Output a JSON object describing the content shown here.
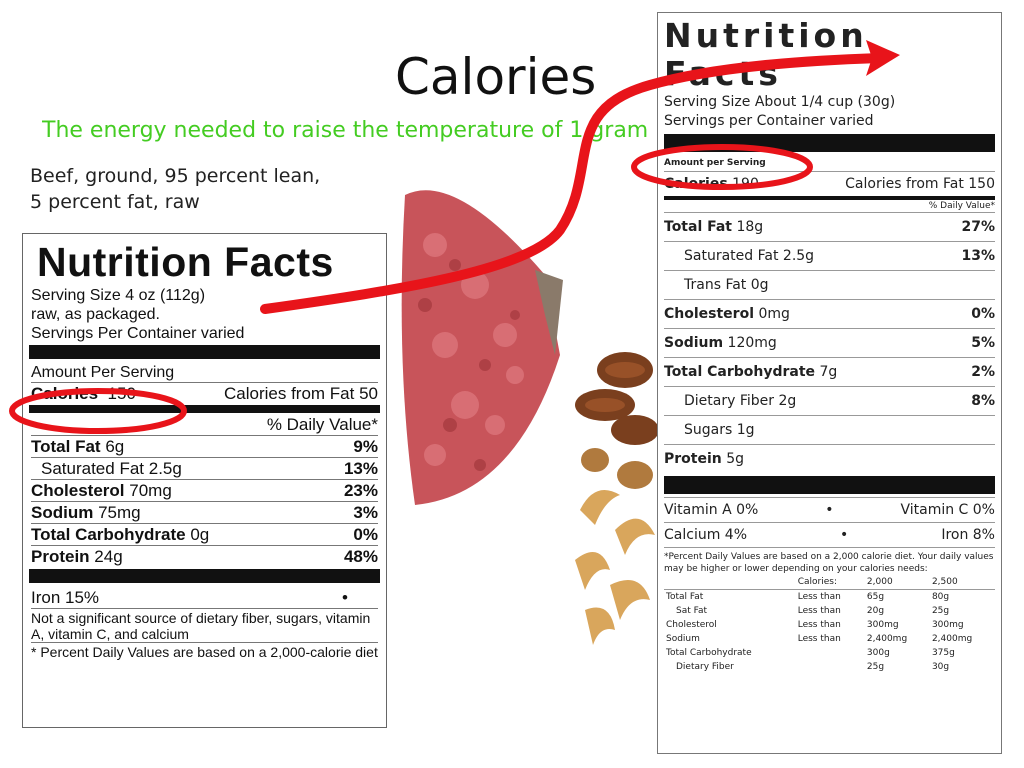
{
  "slide": {
    "title": "Calories",
    "subtitle": "The energy needed to raise the temperature of 1 gram"
  },
  "food_caption": {
    "line1": "Beef, ground, 95 percent lean,",
    "line2": "5 percent fat, raw"
  },
  "colors": {
    "subtitle": "#44cc22",
    "arrow": "#e8141a",
    "beef": "#c8545a",
    "nuts": "#b07a3e"
  },
  "label_left": {
    "title": "Nutrition Facts",
    "serving_size": "Serving Size 4 oz (112g)",
    "serving_note": "raw, as packaged.",
    "servings_per_container": "Servings Per Container varied",
    "amount_per_serving": "Amount Per Serving",
    "calories_label": "Calories",
    "calories_value": "150",
    "calories_from_fat": "Calories from Fat 50",
    "dv_header": "% Daily Value*",
    "rows": [
      {
        "label": "Total Fat",
        "amount": "6g",
        "dv": "9%"
      },
      {
        "label": "Saturated Fat",
        "amount": "2.5g",
        "dv": "13%"
      },
      {
        "label": "Cholesterol",
        "amount": "70mg",
        "dv": "23%"
      },
      {
        "label": "Sodium",
        "amount": "75mg",
        "dv": "3%"
      },
      {
        "label": "Total Carbohydrate",
        "amount": "0g",
        "dv": "0%"
      },
      {
        "label": "Protein",
        "amount": "24g",
        "dv": "48%"
      }
    ],
    "iron": "Iron 15%",
    "bullet": "•",
    "footnote1": "Not a significant source of dietary fiber, sugars, vitamin A, vitamin C, and calcium",
    "footnote2": "* Percent Daily Values are based on a 2,000-calorie diet"
  },
  "label_right": {
    "title": "Nutrition Facts",
    "serving_size": "Serving Size About 1/4 cup (30g)",
    "servings_per_container": "Servings per Container varied",
    "amount_per_serving": "Amount per Serving",
    "calories_label": "Calories",
    "calories_value": "190",
    "calories_from_fat": "Calories from Fat 150",
    "dv_header": "% Daily Value*",
    "rows": [
      {
        "label": "Total Fat",
        "amount": "18g",
        "dv": "27%"
      },
      {
        "label": "Saturated Fat",
        "amount": "2.5g",
        "dv": "13%"
      },
      {
        "label": "Trans Fat",
        "amount": "0g",
        "dv": ""
      },
      {
        "label": "Cholesterol",
        "amount": "0mg",
        "dv": "0%"
      },
      {
        "label": "Sodium",
        "amount": "120mg",
        "dv": "5%"
      },
      {
        "label": "Total Carbohydrate",
        "amount": "7g",
        "dv": "2%"
      },
      {
        "label": "Dietary Fiber",
        "amount": "2g",
        "dv": "8%"
      },
      {
        "label": "Sugars",
        "amount": "1g",
        "dv": ""
      },
      {
        "label": "Protein",
        "amount": "5g",
        "dv": ""
      }
    ],
    "vitamin_a": "Vitamin A 0%",
    "vitamin_c": "Vitamin C 0%",
    "calcium": "Calcium 4%",
    "iron": "Iron 8%",
    "bullet": "•",
    "footnote": "*Percent Daily Values are based on a 2,000 calorie diet. Your daily values may be higher or lower depending on your calories needs:",
    "table_header": [
      "",
      "Calories:",
      "2,000",
      "2,500"
    ],
    "table_rows": [
      [
        "Total Fat",
        "Less than",
        "65g",
        "80g"
      ],
      [
        "Sat Fat",
        "Less than",
        "20g",
        "25g"
      ],
      [
        "Cholesterol",
        "Less than",
        "300mg",
        "300mg"
      ],
      [
        "Sodium",
        "Less than",
        "2,400mg",
        "2,400mg"
      ],
      [
        "Total Carbohydrate",
        "",
        "300g",
        "375g"
      ],
      [
        "Dietary Fiber",
        "",
        "25g",
        "30g"
      ]
    ]
  }
}
